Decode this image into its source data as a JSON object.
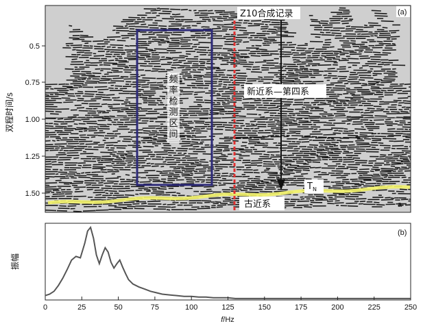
{
  "panel_a": {
    "label": "(a)",
    "ylabel": "双程时间/s",
    "yticks": [
      "0.5",
      "0.75",
      "1.00",
      "1.25",
      "1.50"
    ],
    "annotations": {
      "well_record": "Z10合成记录",
      "box_text": [
        "频",
        "率",
        "检",
        "测",
        "区",
        "间"
      ],
      "upper_unit": "新近系—第四系",
      "lower_unit": "古近系",
      "horizon": "T",
      "horizon_sub": "N",
      "corner_mark": "a"
    }
  },
  "chart_data": [
    {
      "type": "line",
      "panel": "(b)",
      "title": "",
      "ylabel": "振幅",
      "xlabel_italic": "f",
      "xlabel_unit": "/Hz",
      "xlim": [
        0,
        250
      ],
      "x_ticks": [
        0,
        25,
        50,
        75,
        100,
        125,
        150,
        175,
        200,
        225,
        250
      ],
      "ylim": [
        0,
        1
      ],
      "series": [
        {
          "x": [
            0,
            3,
            6,
            9,
            12,
            15,
            18,
            21,
            24,
            27,
            29,
            31,
            33,
            35,
            37,
            39,
            41,
            43,
            45,
            47,
            49,
            51,
            53,
            55,
            57,
            60,
            64,
            68,
            72,
            76,
            80,
            85,
            90,
            95,
            100,
            105,
            110,
            115,
            120,
            125,
            130,
            140,
            150,
            160,
            175,
            200,
            225,
            250
          ],
          "y": [
            0.06,
            0.08,
            0.12,
            0.2,
            0.3,
            0.42,
            0.55,
            0.6,
            0.58,
            0.78,
            0.95,
            1.0,
            0.85,
            0.62,
            0.5,
            0.62,
            0.72,
            0.66,
            0.52,
            0.44,
            0.5,
            0.55,
            0.45,
            0.36,
            0.28,
            0.22,
            0.18,
            0.15,
            0.12,
            0.1,
            0.08,
            0.07,
            0.06,
            0.05,
            0.05,
            0.04,
            0.04,
            0.03,
            0.03,
            0.03,
            0.02,
            0.02,
            0.02,
            0.02,
            0.02,
            0.02,
            0.02,
            0.02
          ]
        }
      ]
    }
  ]
}
